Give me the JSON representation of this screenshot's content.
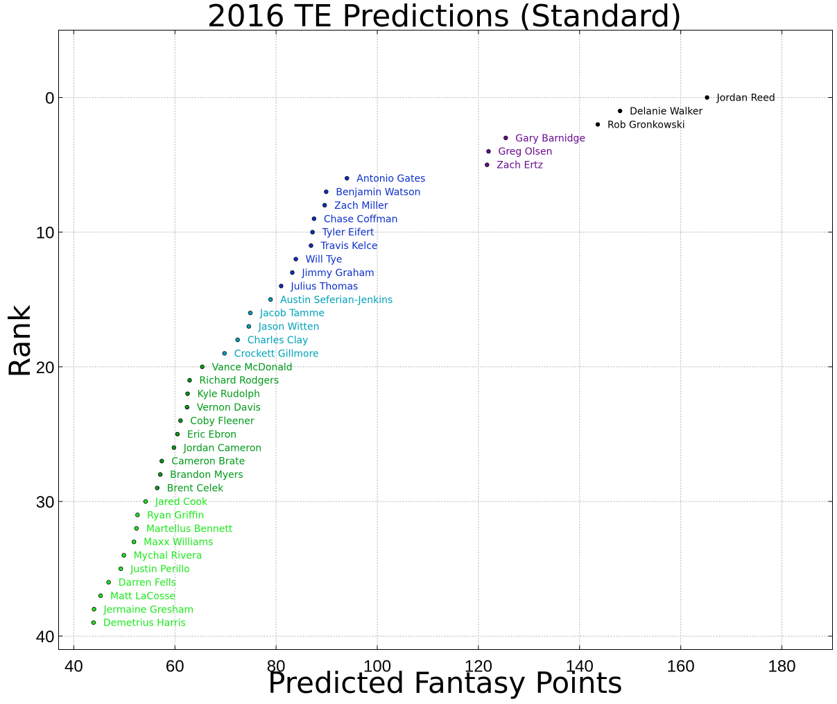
{
  "chart_data": {
    "type": "scatter",
    "title": "2016 TE Predictions (Standard)",
    "xlabel": "Predicted Fantasy Points",
    "ylabel": "Rank",
    "xlim": [
      37,
      190
    ],
    "ylim": [
      41,
      -5
    ],
    "xticks": [
      40,
      60,
      80,
      100,
      120,
      140,
      160,
      180
    ],
    "yticks": [
      0,
      10,
      20,
      30,
      40
    ],
    "grid": true,
    "tier_colors": [
      "#000000",
      "#6a0b8f",
      "#0b2fc8",
      "#00a3b8",
      "#009a1a",
      "#1ee81e"
    ],
    "points": [
      {
        "name": "Jordan Reed",
        "x": 165.2,
        "y": 0,
        "tier": 0
      },
      {
        "name": "Delanie Walker",
        "x": 148.0,
        "y": 1,
        "tier": 0
      },
      {
        "name": "Rob Gronkowski",
        "x": 143.6,
        "y": 2,
        "tier": 0
      },
      {
        "name": "Gary Barnidge",
        "x": 125.4,
        "y": 3,
        "tier": 1
      },
      {
        "name": "Greg Olsen",
        "x": 122.0,
        "y": 4,
        "tier": 1
      },
      {
        "name": "Zach Ertz",
        "x": 121.7,
        "y": 5,
        "tier": 1
      },
      {
        "name": "Antonio Gates",
        "x": 94.0,
        "y": 6,
        "tier": 2
      },
      {
        "name": "Benjamin Watson",
        "x": 89.9,
        "y": 7,
        "tier": 2
      },
      {
        "name": "Zach Miller",
        "x": 89.6,
        "y": 8,
        "tier": 2
      },
      {
        "name": "Chase Coffman",
        "x": 87.5,
        "y": 9,
        "tier": 2
      },
      {
        "name": "Tyler Eifert",
        "x": 87.2,
        "y": 10,
        "tier": 2
      },
      {
        "name": "Travis Kelce",
        "x": 86.9,
        "y": 11,
        "tier": 2
      },
      {
        "name": "Will Tye",
        "x": 83.9,
        "y": 12,
        "tier": 2
      },
      {
        "name": "Jimmy Graham",
        "x": 83.2,
        "y": 13,
        "tier": 2
      },
      {
        "name": "Julius Thomas",
        "x": 81.0,
        "y": 14,
        "tier": 2
      },
      {
        "name": "Austin Seferian-Jenkins",
        "x": 78.9,
        "y": 15,
        "tier": 3
      },
      {
        "name": "Jacob Tamme",
        "x": 74.9,
        "y": 16,
        "tier": 3
      },
      {
        "name": "Jason Witten",
        "x": 74.6,
        "y": 17,
        "tier": 3
      },
      {
        "name": "Charles Clay",
        "x": 72.4,
        "y": 18,
        "tier": 3
      },
      {
        "name": "Crockett Gillmore",
        "x": 69.8,
        "y": 19,
        "tier": 3
      },
      {
        "name": "Vance McDonald",
        "x": 65.4,
        "y": 20,
        "tier": 4
      },
      {
        "name": "Richard Rodgers",
        "x": 62.9,
        "y": 21,
        "tier": 4
      },
      {
        "name": "Kyle Rudolph",
        "x": 62.5,
        "y": 22,
        "tier": 4
      },
      {
        "name": "Vernon Davis",
        "x": 62.4,
        "y": 23,
        "tier": 4
      },
      {
        "name": "Coby Fleener",
        "x": 61.1,
        "y": 24,
        "tier": 4
      },
      {
        "name": "Eric Ebron",
        "x": 60.5,
        "y": 25,
        "tier": 4
      },
      {
        "name": "Jordan Cameron",
        "x": 59.8,
        "y": 26,
        "tier": 4
      },
      {
        "name": "Cameron Brate",
        "x": 57.4,
        "y": 27,
        "tier": 4
      },
      {
        "name": "Brandon Myers",
        "x": 57.1,
        "y": 28,
        "tier": 4
      },
      {
        "name": "Brent Celek",
        "x": 56.5,
        "y": 29,
        "tier": 4
      },
      {
        "name": "Jared Cook",
        "x": 54.2,
        "y": 30,
        "tier": 5
      },
      {
        "name": "Ryan Griffin",
        "x": 52.6,
        "y": 31,
        "tier": 5
      },
      {
        "name": "Martellus Bennett",
        "x": 52.4,
        "y": 32,
        "tier": 5
      },
      {
        "name": "Maxx Williams",
        "x": 51.9,
        "y": 33,
        "tier": 5
      },
      {
        "name": "Mychal Rivera",
        "x": 49.9,
        "y": 34,
        "tier": 5
      },
      {
        "name": "Justin Perillo",
        "x": 49.3,
        "y": 35,
        "tier": 5
      },
      {
        "name": "Darren Fells",
        "x": 46.9,
        "y": 36,
        "tier": 5
      },
      {
        "name": "Matt LaCosse",
        "x": 45.3,
        "y": 37,
        "tier": 5
      },
      {
        "name": "Jermaine Gresham",
        "x": 44.0,
        "y": 38,
        "tier": 5
      },
      {
        "name": "Demetrius Harris",
        "x": 43.9,
        "y": 39,
        "tier": 5
      }
    ]
  }
}
